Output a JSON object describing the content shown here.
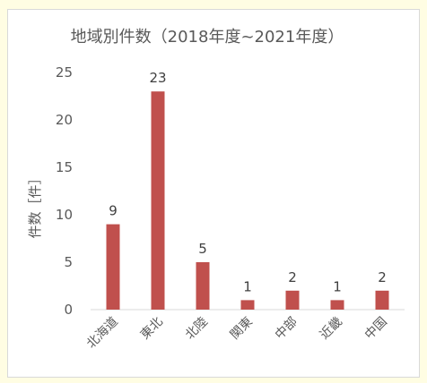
{
  "chart_data": {
    "type": "bar",
    "title": "地域別件数（2018年度~2021年度）",
    "xlabel": "",
    "ylabel": "件数［件］",
    "categories": [
      "北海道",
      "東北",
      "北陸",
      "関東",
      "中部",
      "近畿",
      "中国"
    ],
    "values": [
      9,
      23,
      5,
      1,
      2,
      1,
      2
    ],
    "ylim": [
      0,
      25
    ],
    "yticks": [
      "0",
      "5",
      "10",
      "15",
      "20",
      "25"
    ],
    "grid": false,
    "legend": "none",
    "bar_color": "#c0504d"
  }
}
